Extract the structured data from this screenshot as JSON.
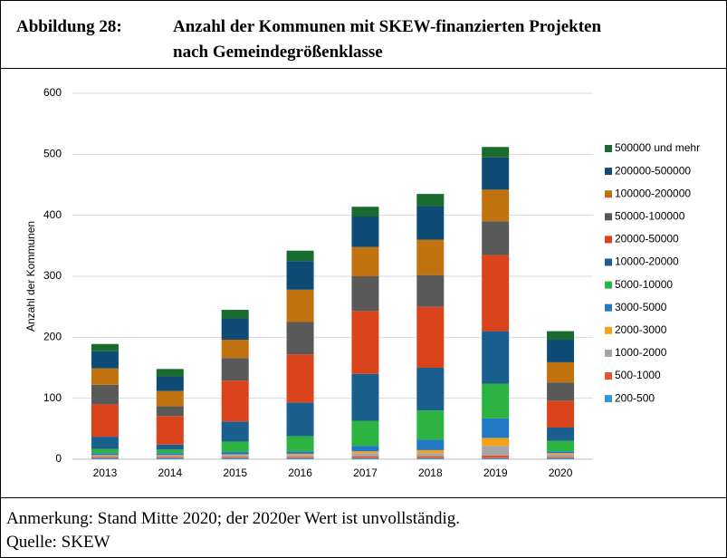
{
  "header": {
    "label": "Abbildung 28:",
    "title_lines": [
      "Anzahl der Kommunen mit SKEW-finanzierten Projekten",
      "nach Gemeindegrößenklasse"
    ]
  },
  "footer": {
    "lines": [
      "Anmerkung: Stand Mitte 2020; der 2020er Wert ist unvollständig.",
      "Quelle: SKEW"
    ]
  },
  "chart_data": {
    "type": "stacked_bar",
    "y_label": "Anzahl der Kommunen",
    "categories": [
      "2013",
      "2014",
      "2015",
      "2016",
      "2017",
      "2018",
      "2019",
      "2020"
    ],
    "ylim": [
      0,
      600
    ],
    "yticks": [
      0,
      100,
      200,
      300,
      400,
      500,
      600
    ],
    "grid": true,
    "legend": "right",
    "series": [
      {
        "name": "200-500",
        "color": "#2e9bd6",
        "values": [
          2,
          2,
          2,
          2,
          2,
          2,
          2,
          2
        ]
      },
      {
        "name": "500-1000",
        "color": "#e8532a",
        "values": [
          2,
          2,
          2,
          2,
          3,
          3,
          4,
          2
        ]
      },
      {
        "name": "1000-2000",
        "color": "#a6a6a6",
        "values": [
          2,
          2,
          3,
          3,
          5,
          5,
          16,
          4
        ]
      },
      {
        "name": "2000-3000",
        "color": "#f5a21b",
        "values": [
          1,
          1,
          1,
          2,
          3,
          5,
          13,
          2
        ]
      },
      {
        "name": "3000-5000",
        "color": "#2378c3",
        "values": [
          3,
          3,
          4,
          4,
          9,
          17,
          32,
          3
        ]
      },
      {
        "name": "5000-10000",
        "color": "#2db342",
        "values": [
          7,
          6,
          17,
          25,
          41,
          48,
          57,
          17
        ]
      },
      {
        "name": "10000-20000",
        "color": "#1a5f8e",
        "values": [
          20,
          8,
          33,
          55,
          77,
          70,
          86,
          22
        ]
      },
      {
        "name": "20000-50000",
        "color": "#d9441c",
        "values": [
          53,
          47,
          67,
          79,
          103,
          100,
          125,
          44
        ]
      },
      {
        "name": "50000-100000",
        "color": "#595959",
        "values": [
          32,
          16,
          37,
          53,
          57,
          52,
          55,
          30
        ]
      },
      {
        "name": "100000-200000",
        "color": "#c0720f",
        "values": [
          27,
          25,
          30,
          53,
          48,
          58,
          52,
          33
        ]
      },
      {
        "name": "200000-500000",
        "color": "#0f4c75",
        "values": [
          28,
          24,
          35,
          47,
          50,
          55,
          53,
          37
        ]
      },
      {
        "name": "500000 und mehr",
        "color": "#1a6b2e",
        "values": [
          12,
          12,
          14,
          17,
          16,
          20,
          17,
          14
        ]
      }
    ]
  }
}
